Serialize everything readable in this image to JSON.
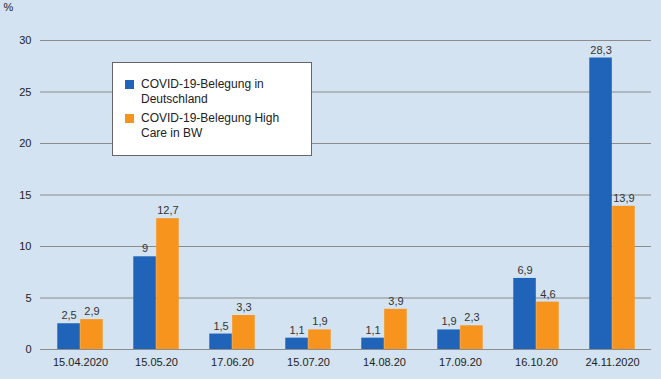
{
  "chart_data": {
    "type": "bar",
    "y_label": "%",
    "categories": [
      "15.04.2020",
      "15.05.20",
      "17.06.20",
      "15.07.20",
      "14.08.20",
      "17.09.20",
      "16.10.20",
      "24.11.2020"
    ],
    "series": [
      {
        "name": "COVID-19-Belegung in Deutschland",
        "color": "#1f64b8",
        "values": [
          2.5,
          9,
          1.5,
          1.1,
          1.1,
          1.9,
          6.9,
          28.3
        ],
        "value_labels": [
          "2,5",
          "9",
          "1,5",
          "1,1",
          "1,1",
          "1,9",
          "6,9",
          "28,3"
        ]
      },
      {
        "name": "COVID-19-Belegung High Care in BW",
        "color": "#f7941d",
        "values": [
          2.9,
          12.7,
          3.3,
          1.9,
          3.9,
          2.3,
          4.6,
          13.9
        ],
        "value_labels": [
          "2,9",
          "12,7",
          "3,3",
          "1,9",
          "3,9",
          "2,3",
          "4,6",
          "13,9"
        ]
      }
    ],
    "ylim": [
      0,
      30
    ],
    "yticks": [
      0,
      5,
      10,
      15,
      20,
      25,
      30
    ],
    "grid": true,
    "legend": "top-left",
    "data_labels": true
  }
}
